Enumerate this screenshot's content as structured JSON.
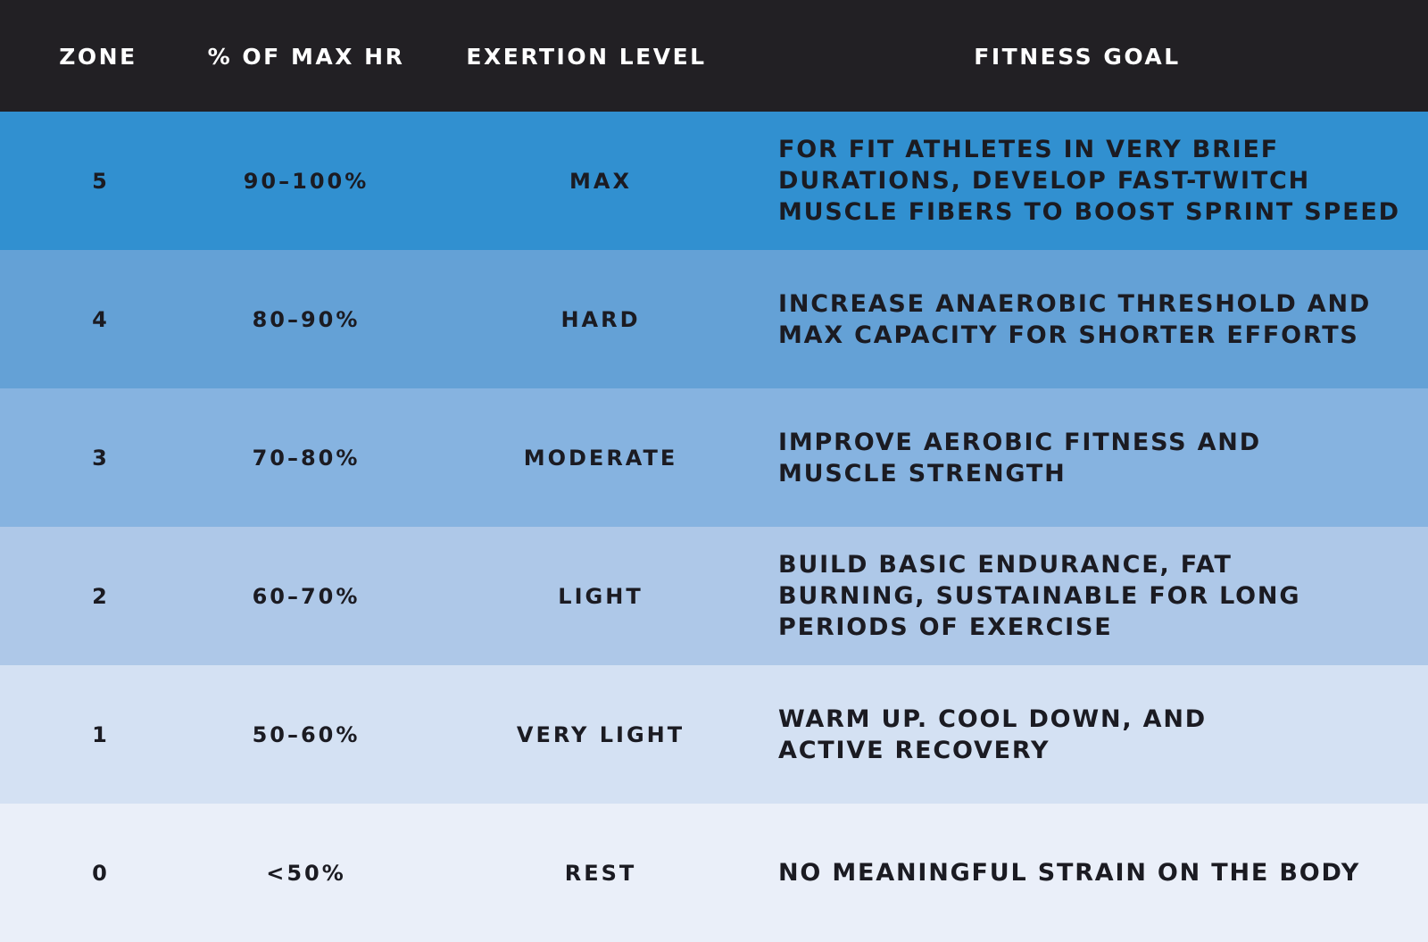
{
  "header": {
    "zone": "ZONE",
    "pct": "% OF MAX HR",
    "exertion": "EXERTION LEVEL",
    "goal": "FITNESS GOAL"
  },
  "colors": {
    "header": "#222024",
    "zone5": "#3190d0",
    "zone4": "#64a1d6",
    "zone3": "#86b3e0",
    "zone2": "#aec8e8",
    "zone1": "#d4e1f3",
    "zone0": "#eaeff9"
  },
  "rows": [
    {
      "zone": "5",
      "pct": "90–100%",
      "exertion": "MAX",
      "goal": "FOR FIT ATHLETES IN VERY BRIEF\nDURATIONS, DEVELOP FAST-TWITCH\nMUSCLE FIBERS TO BOOST SPRINT SPEED"
    },
    {
      "zone": "4",
      "pct": "80–90%",
      "exertion": "HARD",
      "goal": "INCREASE ANAEROBIC THRESHOLD AND\nMAX CAPACITY FOR SHORTER EFFORTS"
    },
    {
      "zone": "3",
      "pct": "70–80%",
      "exertion": "MODERATE",
      "goal": "IMPROVE AEROBIC FITNESS AND\nMUSCLE STRENGTH"
    },
    {
      "zone": "2",
      "pct": "60–70%",
      "exertion": "LIGHT",
      "goal": "BUILD BASIC ENDURANCE, FAT\nBURNING, SUSTAINABLE FOR LONG\nPERIODS OF EXERCISE"
    },
    {
      "zone": "1",
      "pct": "50–60%",
      "exertion": "VERY LIGHT",
      "goal": "WARM UP. COOL DOWN, AND\nACTIVE RECOVERY"
    },
    {
      "zone": "0",
      "pct": "<50%",
      "exertion": "REST",
      "goal": "NO MEANINGFUL STRAIN ON THE BODY"
    }
  ]
}
